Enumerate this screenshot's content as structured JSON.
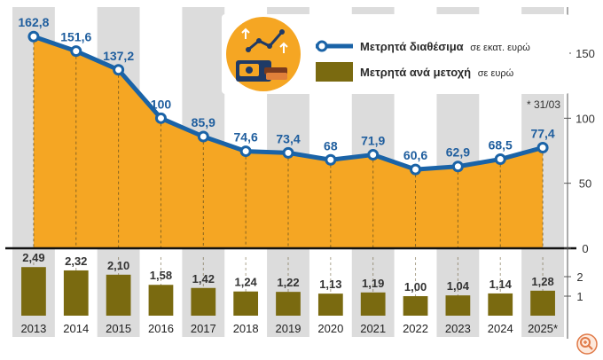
{
  "chart_data": [
    {
      "type": "area",
      "categories": [
        "2013",
        "2014",
        "2015",
        "2016",
        "2017",
        "2018",
        "2019",
        "2020",
        "2021",
        "2022",
        "2023",
        "2024",
        "2025*"
      ],
      "series": [
        {
          "name": "Μετρητά διαθέσιμα",
          "name_suffix": "σε εκατ. ευρώ",
          "values": [
            162.8,
            151.6,
            137.2,
            100,
            85.9,
            74.6,
            73.4,
            68,
            71.9,
            60.6,
            62.9,
            68.5,
            77.4
          ],
          "labels": [
            "162,8",
            "151,6",
            "137,2",
            "100",
            "85,9",
            "74,6",
            "73,4",
            "68",
            "71,9",
            "60,6",
            "62,9",
            "68,5",
            "77,4"
          ]
        }
      ],
      "yticks": [
        "0",
        "50",
        "100",
        "150"
      ],
      "ylim": [
        0,
        190
      ],
      "annotation": "* 31/03",
      "grid": true,
      "legend": "top-right",
      "colors": {
        "line": "#1a63a7",
        "area": "#f5a623",
        "labels": "#1f5e9e"
      }
    },
    {
      "type": "bar",
      "categories": [
        "2013",
        "2014",
        "2015",
        "2016",
        "2017",
        "2018",
        "2019",
        "2020",
        "2021",
        "2022",
        "2023",
        "2024",
        "2025*"
      ],
      "series": [
        {
          "name": "Μετρητά ανά μετοχή",
          "name_suffix": "σε ευρώ",
          "values": [
            2.49,
            2.32,
            2.1,
            1.58,
            1.42,
            1.24,
            1.22,
            1.13,
            1.19,
            1.0,
            1.04,
            1.14,
            1.28
          ],
          "labels": [
            "2,49",
            "2,32",
            "2,10",
            "1,58",
            "1,42",
            "1,24",
            "1,22",
            "1,13",
            "1,19",
            "1,00",
            "1,04",
            "1,14",
            "1,28"
          ]
        }
      ],
      "yticks": [
        "1",
        "2"
      ],
      "ylim": [
        0,
        2.8
      ],
      "colors": {
        "bar": "#7a6a10"
      }
    }
  ],
  "colors": {
    "band": "#dcdcdc",
    "legend_text": "#2a2a2a"
  }
}
